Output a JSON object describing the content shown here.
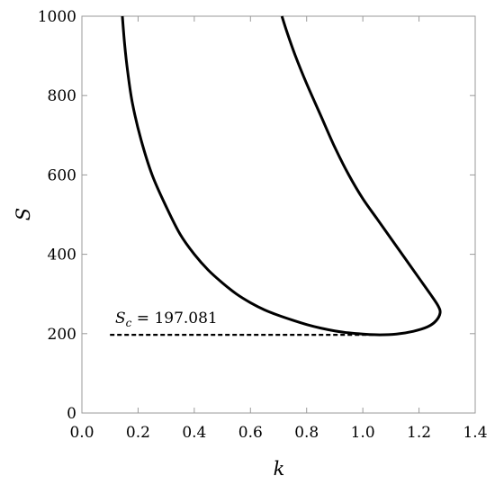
{
  "chart_data": {
    "type": "line",
    "title": "",
    "xlabel": "k",
    "ylabel": "S",
    "xlim": [
      0.0,
      1.4
    ],
    "ylim": [
      0,
      1000
    ],
    "grid": false,
    "x_ticks": [
      "0.0",
      "0.2",
      "0.4",
      "0.6",
      "0.8",
      "1.0",
      "1.2",
      "1.4"
    ],
    "y_ticks": [
      "0",
      "200",
      "400",
      "600",
      "800",
      "1000"
    ],
    "series": [
      {
        "style": "solid",
        "color": "#000000",
        "points": [
          [
            0.144,
            1000
          ],
          [
            0.152,
            930
          ],
          [
            0.163,
            860
          ],
          [
            0.18,
            780
          ],
          [
            0.21,
            690
          ],
          [
            0.25,
            600
          ],
          [
            0.3,
            520
          ],
          [
            0.35,
            450
          ],
          [
            0.4,
            400
          ],
          [
            0.45,
            360
          ],
          [
            0.5,
            328
          ],
          [
            0.55,
            300
          ],
          [
            0.6,
            278
          ],
          [
            0.65,
            260
          ],
          [
            0.7,
            246
          ],
          [
            0.75,
            234
          ],
          [
            0.8,
            223
          ],
          [
            0.85,
            214
          ],
          [
            0.9,
            207
          ],
          [
            0.95,
            202
          ],
          [
            1.0,
            199
          ],
          [
            1.06,
            197.1
          ],
          [
            1.12,
            199
          ],
          [
            1.18,
            206
          ],
          [
            1.23,
            217
          ],
          [
            1.26,
            232
          ],
          [
            1.275,
            252
          ],
          [
            1.268,
            270
          ],
          [
            1.24,
            300
          ],
          [
            1.2,
            340
          ],
          [
            1.15,
            390
          ],
          [
            1.1,
            440
          ],
          [
            1.05,
            490
          ],
          [
            1.0,
            540
          ],
          [
            0.95,
            600
          ],
          [
            0.9,
            670
          ],
          [
            0.85,
            750
          ],
          [
            0.8,
            830
          ],
          [
            0.76,
            900
          ],
          [
            0.73,
            960
          ],
          [
            0.712,
            1000
          ]
        ]
      },
      {
        "style": "dashed",
        "color": "#000000",
        "points": [
          [
            0.1,
            197.081
          ],
          [
            1.06,
            197.081
          ]
        ]
      }
    ],
    "annotations": [
      {
        "label_main": "S",
        "label_sub": "c",
        "label_rest": " = 197.081",
        "x": 0.12,
        "y": 215
      }
    ]
  }
}
